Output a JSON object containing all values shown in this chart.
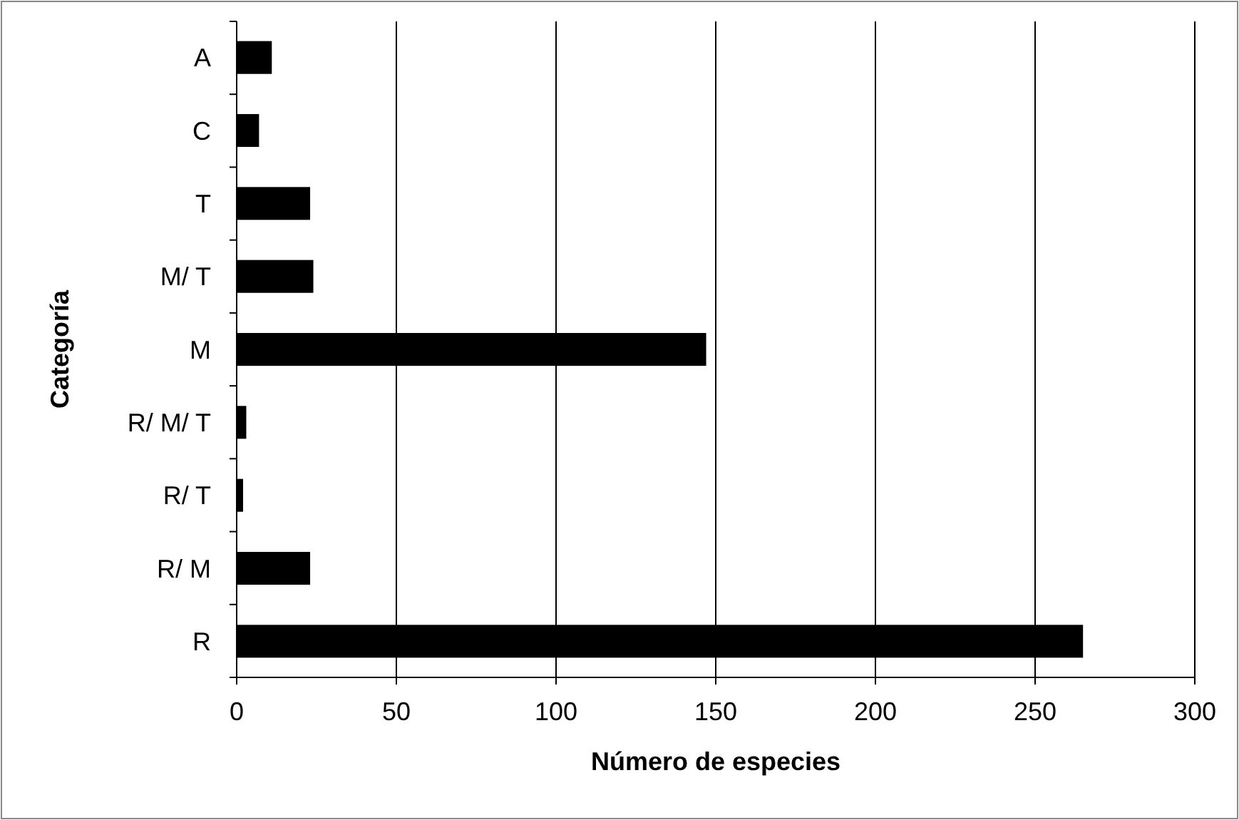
{
  "chart_data": {
    "type": "bar",
    "orientation": "horizontal",
    "xlabel": "Número de especies",
    "ylabel": "Categoría",
    "categories": [
      "A",
      "C",
      "T",
      "M/ T",
      "M",
      "R/ M/ T",
      "R/ T",
      "R/ M",
      "R"
    ],
    "values": [
      11,
      7,
      23,
      24,
      147,
      3,
      2,
      23,
      265
    ],
    "color": "#000000",
    "xlim": [
      0,
      300
    ],
    "xticks": [
      0,
      50,
      100,
      150,
      200,
      250,
      300
    ],
    "grid": "x"
  }
}
